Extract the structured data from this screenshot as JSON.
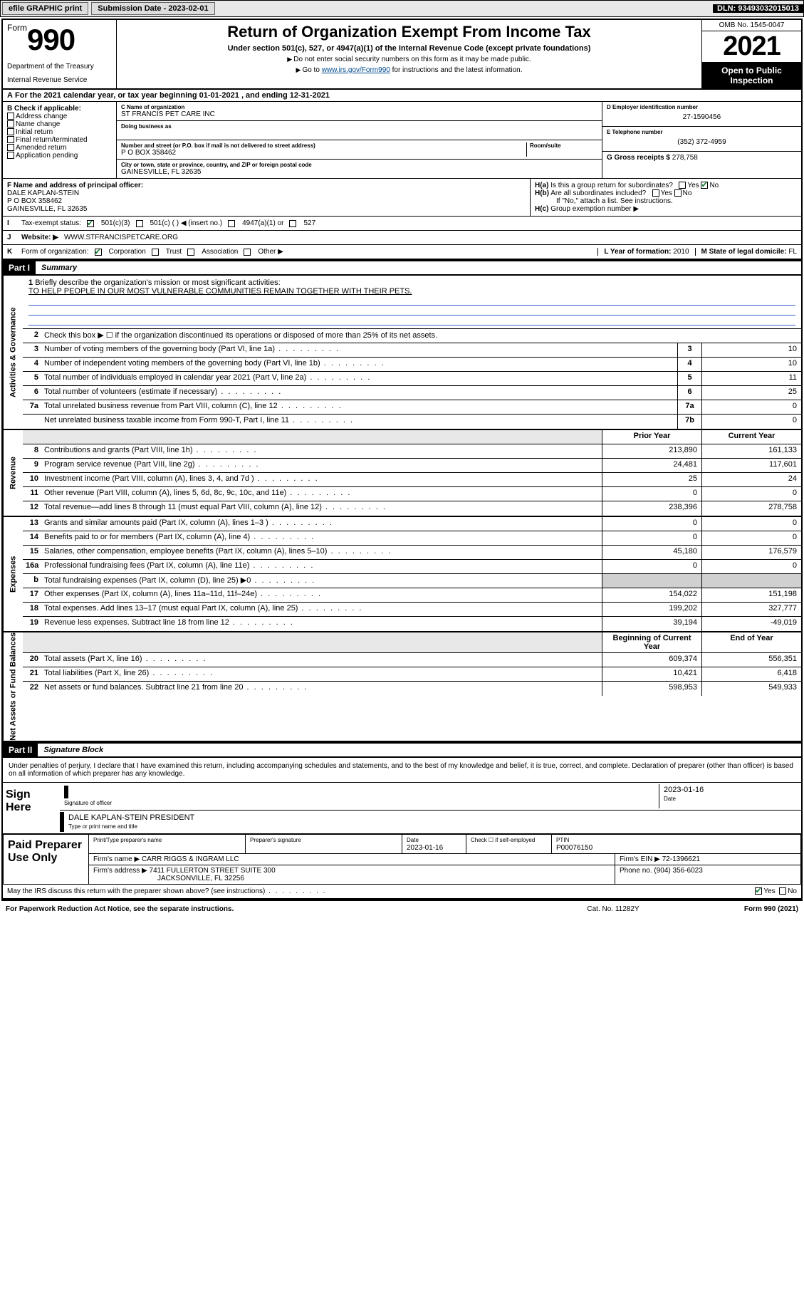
{
  "topbar": {
    "efile": "efile GRAPHIC print",
    "sub_label": "Submission Date - 2023-02-01",
    "dln": "DLN: 93493032015013"
  },
  "header": {
    "form_prefix": "Form",
    "form_num": "990",
    "dept": "Department of the Treasury",
    "irs": "Internal Revenue Service",
    "title": "Return of Organization Exempt From Income Tax",
    "sub": "Under section 501(c), 527, or 4947(a)(1) of the Internal Revenue Code (except private foundations)",
    "note1": "Do not enter social security numbers on this form as it may be made public.",
    "note2_pre": "Go to ",
    "note2_link": "www.irs.gov/Form990",
    "note2_post": " for instructions and the latest information.",
    "omb": "OMB No. 1545-0047",
    "year": "2021",
    "open": "Open to Public Inspection"
  },
  "sec_a": "For the 2021 calendar year, or tax year beginning 01-01-2021   , and ending 12-31-2021",
  "check_b": {
    "label": "Check if applicable:",
    "items": [
      "Address change",
      "Name change",
      "Initial return",
      "Final return/terminated",
      "Amended return",
      "Application pending"
    ]
  },
  "org": {
    "c_label": "C Name of organization",
    "name": "ST FRANCIS PET CARE INC",
    "dba_label": "Doing business as",
    "addr_label": "Number and street (or P.O. box if mail is not delivered to street address)",
    "room_label": "Room/suite",
    "addr": "P O BOX 358462",
    "city_label": "City or town, state or province, country, and ZIP or foreign postal code",
    "city": "GAINESVILLE, FL  32635"
  },
  "right_info": {
    "d_label": "D Employer identification number",
    "d_val": "27-1590456",
    "e_label": "E Telephone number",
    "e_val": "(352) 372-4959",
    "g_label": "G Gross receipts $",
    "g_val": "278,758"
  },
  "principal": {
    "f_label": "F Name and address of principal officer:",
    "name": "DALE KAPLAN-STEIN",
    "addr": "P O BOX 358462",
    "city": "GAINESVILLE, FL  32635",
    "ha": "Is this a group return for subordinates?",
    "hb": "Are all subordinates included?",
    "hb_note": "If \"No,\" attach a list. See instructions.",
    "hc": "Group exemption number ▶"
  },
  "line_i": {
    "label": "Tax-exempt status:",
    "opts": [
      "501(c)(3)",
      "501(c) (  ) ◀ (insert no.)",
      "4947(a)(1) or",
      "527"
    ]
  },
  "line_j": {
    "label": "Website: ▶",
    "val": "WWW.STFRANCISPETCARE.ORG"
  },
  "line_k": {
    "label": "Form of organization:",
    "opts": [
      "Corporation",
      "Trust",
      "Association",
      "Other ▶"
    ]
  },
  "line_l": {
    "label": "L Year of formation:",
    "val": "2010"
  },
  "line_m": {
    "label": "M State of legal domicile:",
    "val": "FL"
  },
  "part1": {
    "hdr": "Part I",
    "title": "Summary",
    "q1": "Briefly describe the organization's mission or most significant activities:",
    "mission": "TO HELP PEOPLE IN OUR MOST VULNERABLE COMMUNITIES REMAIN TOGETHER WITH THEIR PETS.",
    "q2": "Check this box ▶ ☐  if the organization discontinued its operations or disposed of more than 25% of its net assets.",
    "vtabs": [
      "Activities & Governance",
      "Revenue",
      "Expenses",
      "Net Assets or Fund Balances"
    ],
    "col_hdr": [
      "Prior Year",
      "Current Year"
    ],
    "beg_end": [
      "Beginning of Current Year",
      "End of Year"
    ],
    "rows_gov": [
      {
        "n": "3",
        "d": "Number of voting members of the governing body (Part VI, line 1a)",
        "box": "3",
        "v": "10"
      },
      {
        "n": "4",
        "d": "Number of independent voting members of the governing body (Part VI, line 1b)",
        "box": "4",
        "v": "10"
      },
      {
        "n": "5",
        "d": "Total number of individuals employed in calendar year 2021 (Part V, line 2a)",
        "box": "5",
        "v": "11"
      },
      {
        "n": "6",
        "d": "Total number of volunteers (estimate if necessary)",
        "box": "6",
        "v": "25"
      },
      {
        "n": "7a",
        "d": "Total unrelated business revenue from Part VIII, column (C), line 12",
        "box": "7a",
        "v": "0"
      },
      {
        "n": "",
        "d": "Net unrelated business taxable income from Form 990-T, Part I, line 11",
        "box": "7b",
        "v": "0"
      }
    ],
    "rows_rev": [
      {
        "n": "8",
        "d": "Contributions and grants (Part VIII, line 1h)",
        "py": "213,890",
        "cy": "161,133"
      },
      {
        "n": "9",
        "d": "Program service revenue (Part VIII, line 2g)",
        "py": "24,481",
        "cy": "117,601"
      },
      {
        "n": "10",
        "d": "Investment income (Part VIII, column (A), lines 3, 4, and 7d )",
        "py": "25",
        "cy": "24"
      },
      {
        "n": "11",
        "d": "Other revenue (Part VIII, column (A), lines 5, 6d, 8c, 9c, 10c, and 11e)",
        "py": "0",
        "cy": "0"
      },
      {
        "n": "12",
        "d": "Total revenue—add lines 8 through 11 (must equal Part VIII, column (A), line 12)",
        "py": "238,396",
        "cy": "278,758"
      }
    ],
    "rows_exp": [
      {
        "n": "13",
        "d": "Grants and similar amounts paid (Part IX, column (A), lines 1–3 )",
        "py": "0",
        "cy": "0"
      },
      {
        "n": "14",
        "d": "Benefits paid to or for members (Part IX, column (A), line 4)",
        "py": "0",
        "cy": "0"
      },
      {
        "n": "15",
        "d": "Salaries, other compensation, employee benefits (Part IX, column (A), lines 5–10)",
        "py": "45,180",
        "cy": "176,579"
      },
      {
        "n": "16a",
        "d": "Professional fundraising fees (Part IX, column (A), line 11e)",
        "py": "0",
        "cy": "0"
      },
      {
        "n": "b",
        "d": "Total fundraising expenses (Part IX, column (D), line 25) ▶0",
        "py": "",
        "cy": "",
        "grey": true
      },
      {
        "n": "17",
        "d": "Other expenses (Part IX, column (A), lines 11a–11d, 11f–24e)",
        "py": "154,022",
        "cy": "151,198"
      },
      {
        "n": "18",
        "d": "Total expenses. Add lines 13–17 (must equal Part IX, column (A), line 25)",
        "py": "199,202",
        "cy": "327,777"
      },
      {
        "n": "19",
        "d": "Revenue less expenses. Subtract line 18 from line 12",
        "py": "39,194",
        "cy": "-49,019"
      }
    ],
    "rows_net": [
      {
        "n": "20",
        "d": "Total assets (Part X, line 16)",
        "py": "609,374",
        "cy": "556,351"
      },
      {
        "n": "21",
        "d": "Total liabilities (Part X, line 26)",
        "py": "10,421",
        "cy": "6,418"
      },
      {
        "n": "22",
        "d": "Net assets or fund balances. Subtract line 21 from line 20",
        "py": "598,953",
        "cy": "549,933"
      }
    ]
  },
  "part2": {
    "hdr": "Part II",
    "title": "Signature Block",
    "perjury": "Under penalties of perjury, I declare that I have examined this return, including accompanying schedules and statements, and to the best of my knowledge and belief, it is true, correct, and complete. Declaration of preparer (other than officer) is based on all information of which preparer has any knowledge.",
    "sign_here": "Sign Here",
    "sig_officer": "Signature of officer",
    "sig_date": "2023-01-16",
    "date_lbl": "Date",
    "officer_name": "DALE KAPLAN-STEIN  PRESIDENT",
    "type_name": "Type or print name and title",
    "paid": "Paid Preparer Use Only",
    "prep_name_lbl": "Print/Type preparer's name",
    "prep_sig_lbl": "Preparer's signature",
    "prep_date_lbl": "Date",
    "prep_date": "2023-01-16",
    "check_self": "Check ☐ if self-employed",
    "ptin_lbl": "PTIN",
    "ptin": "P00076150",
    "firm_name_lbl": "Firm's name    ▶",
    "firm_name": "CARR RIGGS & INGRAM LLC",
    "firm_ein_lbl": "Firm's EIN ▶",
    "firm_ein": "72-1396621",
    "firm_addr_lbl": "Firm's address ▶",
    "firm_addr": "7411 FULLERTON STREET SUITE 300",
    "firm_city": "JACKSONVILLE, FL  32256",
    "phone_lbl": "Phone no.",
    "phone": "(904) 356-6023",
    "discuss": "May the IRS discuss this return with the preparer shown above? (see instructions)"
  },
  "footer": {
    "pra": "For Paperwork Reduction Act Notice, see the separate instructions.",
    "cat": "Cat. No. 11282Y",
    "form": "Form 990 (2021)"
  }
}
